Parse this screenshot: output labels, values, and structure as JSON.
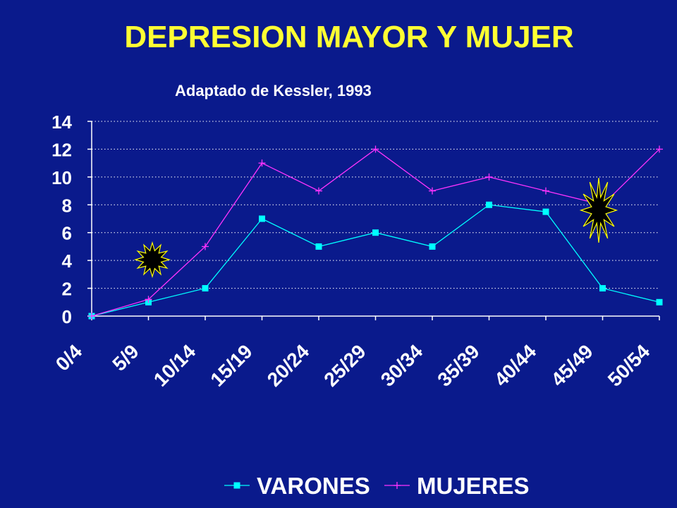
{
  "slide": {
    "title": "DEPRESION MAYOR Y MUJER",
    "subtitle": "Adaptado de Kessler, 1993"
  },
  "chart_data": {
    "type": "line",
    "categories": [
      "0/4",
      "5/9",
      "10/14",
      "15/19",
      "20/24",
      "25/29",
      "30/34",
      "35/39",
      "40/44",
      "45/49",
      "50/54"
    ],
    "series": [
      {
        "name": "VARONES",
        "values": [
          0,
          1,
          2,
          7,
          5,
          6,
          5,
          8,
          7.5,
          2,
          1
        ],
        "color": "#00ffff",
        "marker": "square"
      },
      {
        "name": "MUJERES",
        "values": [
          0,
          1.2,
          5,
          11,
          9,
          12,
          9,
          10,
          9,
          8,
          12
        ],
        "color": "#ff33ff",
        "marker": "plus"
      }
    ],
    "ylim": [
      0,
      14
    ],
    "yticks": [
      0,
      2,
      4,
      6,
      8,
      10,
      12,
      14
    ],
    "grid": true,
    "legend_position": "bottom",
    "annotations": [
      "starburst-small",
      "starburst-large"
    ]
  }
}
